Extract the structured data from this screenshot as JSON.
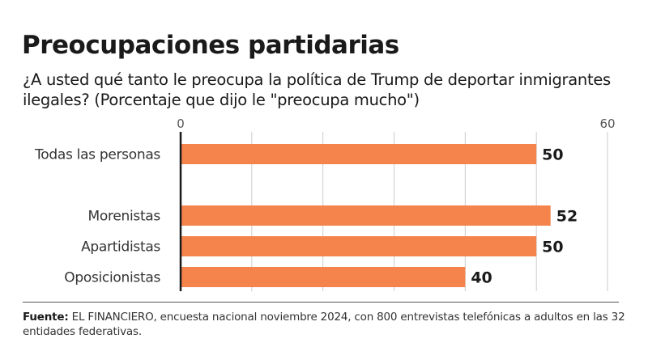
{
  "title": "Preocupaciones partidarias",
  "subtitle": "¿A usted qué tanto le preocupa la política de Trump de deportar inmigrantes ilegales?  (Porcentaje que dijo le \"preocupa mucho\")",
  "source": {
    "label": "Fuente:",
    "text": " EL FINANCIERO, encuesta nacional noviembre 2024, con 800 entrevistas telefónicas a adultos en las 32 entidades federativas."
  },
  "colors": {
    "bar": "#F5844C",
    "axis": "#1a1a1a",
    "grid": "#cccccc"
  },
  "chart_data": {
    "type": "bar",
    "orientation": "horizontal",
    "title": "Preocupaciones partidarias",
    "xlabel": "",
    "ylabel": "",
    "xlim": [
      0,
      60
    ],
    "grid": true,
    "gridlines": [
      10,
      20,
      30,
      40,
      50,
      60
    ],
    "tick_labels": [
      {
        "value": 0,
        "label": "0"
      },
      {
        "value": 60,
        "label": "60"
      }
    ],
    "categories": [
      "Todas las personas",
      "Morenistas",
      "Apartidistas",
      "Oposicionistas"
    ],
    "values": [
      50,
      52,
      50,
      40
    ],
    "value_labels": [
      "50",
      "52",
      "50",
      "40"
    ],
    "unit": "%"
  }
}
